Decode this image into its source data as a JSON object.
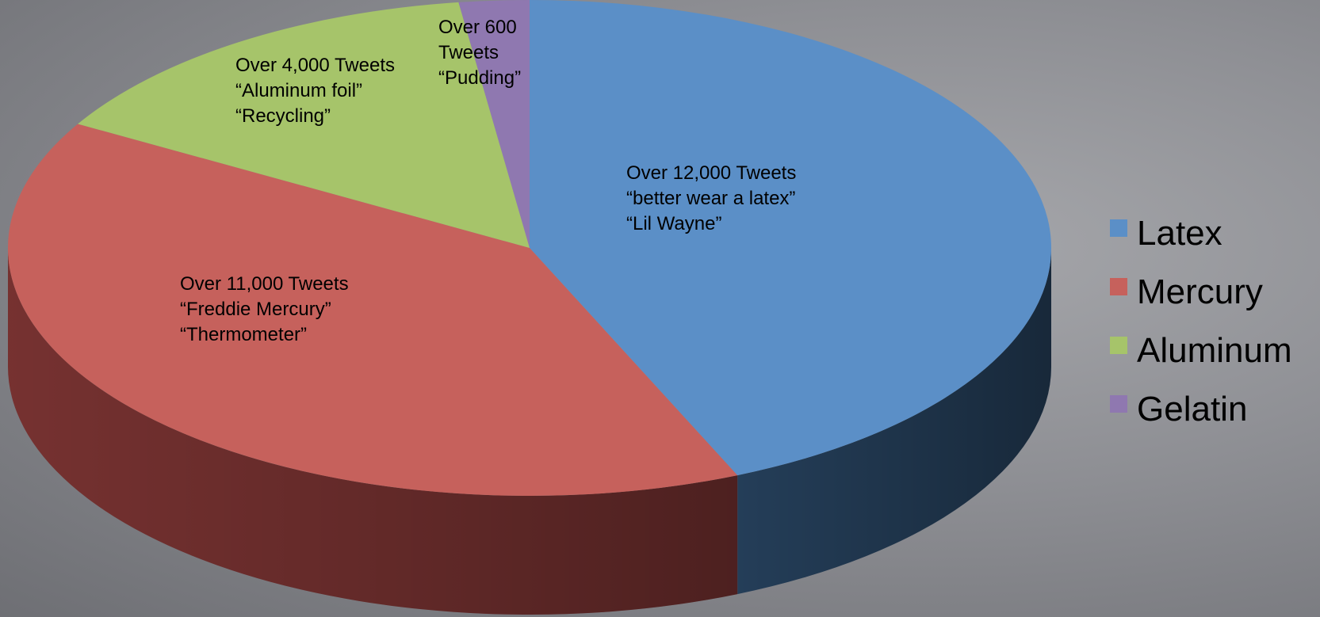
{
  "chart_data": {
    "type": "pie",
    "style": "3d",
    "title": "",
    "categories": [
      "Latex",
      "Mercury",
      "Aluminum",
      "Gelatin"
    ],
    "values": [
      12000,
      11000,
      4000,
      600
    ],
    "colors": [
      "#5b8fc7",
      "#c6615c",
      "#a6c46a",
      "#8f78b0"
    ],
    "side_colors": [
      "#26415d",
      "#7c3433",
      "#5f7336",
      "#4f3f68"
    ],
    "slice_labels": [
      [
        "Over 12,000 Tweets",
        "“better wear a latex”",
        "“Lil Wayne”"
      ],
      [
        "Over 11,000 Tweets",
        "“Freddie Mercury”",
        "“Thermometer”"
      ],
      [
        "Over 4,000 Tweets",
        "“Aluminum foil”",
        "“Recycling”"
      ],
      [
        "Over 600",
        "Tweets",
        "“Pudding”"
      ]
    ],
    "legend": [
      "Latex",
      "Mercury",
      "Aluminum",
      "Gelatin"
    ],
    "legend_position": "right"
  }
}
